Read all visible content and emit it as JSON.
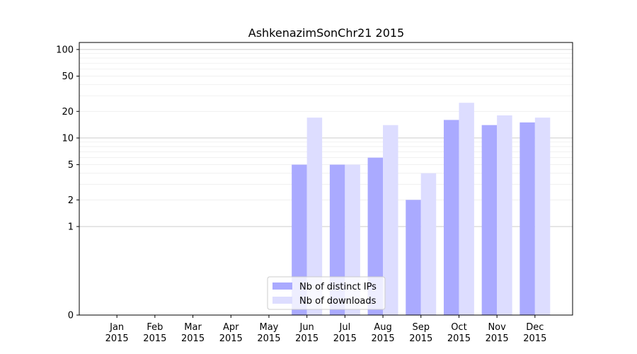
{
  "chart_data": {
    "type": "bar",
    "title": "AshkenazimSonChr21 2015",
    "xlabel": "",
    "ylabel": "",
    "yscale": "symlog",
    "ylim": [
      0,
      120
    ],
    "yticks": [
      0,
      1,
      2,
      5,
      10,
      20,
      50,
      100
    ],
    "categories": [
      {
        "month": "Jan",
        "year": "2015"
      },
      {
        "month": "Feb",
        "year": "2015"
      },
      {
        "month": "Mar",
        "year": "2015"
      },
      {
        "month": "Apr",
        "year": "2015"
      },
      {
        "month": "May",
        "year": "2015"
      },
      {
        "month": "Jun",
        "year": "2015"
      },
      {
        "month": "Jul",
        "year": "2015"
      },
      {
        "month": "Aug",
        "year": "2015"
      },
      {
        "month": "Sep",
        "year": "2015"
      },
      {
        "month": "Oct",
        "year": "2015"
      },
      {
        "month": "Nov",
        "year": "2015"
      },
      {
        "month": "Dec",
        "year": "2015"
      }
    ],
    "series": [
      {
        "name": "Nb of distinct IPs",
        "color": "#aaaaff",
        "values": [
          0,
          0,
          0,
          0,
          0,
          5,
          5,
          6,
          2,
          16,
          14,
          15
        ]
      },
      {
        "name": "Nb of downloads",
        "color": "#ddddff",
        "values": [
          0,
          0,
          0,
          0,
          0,
          17,
          5,
          14,
          4,
          25,
          18,
          17
        ]
      }
    ],
    "grid": true,
    "legend_position": "bottom-center"
  }
}
